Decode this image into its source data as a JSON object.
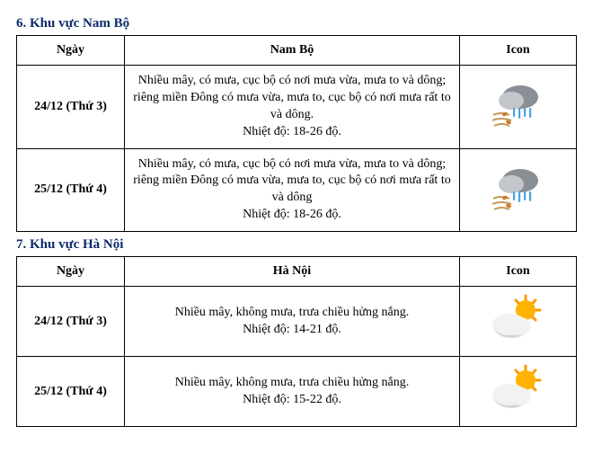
{
  "title_color": "#0b2a6a",
  "border_color": "#000000",
  "text_color": "#000000",
  "background_color": "#ffffff",
  "font_family": "Times New Roman",
  "sections": [
    {
      "title": "6. Khu vực Nam Bộ",
      "region_header": "Nam Bộ",
      "date_header": "Ngày",
      "icon_header": "Icon",
      "icon_type": "storm",
      "rows": [
        {
          "date": "24/12 (Thứ 3)",
          "desc": "Nhiều mây, có mưa, cục bộ có nơi mưa vừa, mưa to và dông; riêng miền Đông có mưa vừa, mưa to, cục bộ có nơi mưa rất to và dông.\nNhiệt độ: 18-26 độ."
        },
        {
          "date": "25/12 (Thứ 4)",
          "desc": "Nhiều mây, có mưa, cục bộ có nơi mưa vừa, mưa to và dông; riêng miền Đông có mưa vừa, mưa to, cục bộ có nơi mưa rất to và dông\nNhiệt độ: 18-26 độ."
        }
      ]
    },
    {
      "title": "7. Khu vực Hà Nội",
      "region_header": "Hà Nội",
      "date_header": "Ngày",
      "icon_header": "Icon",
      "icon_type": "partly_sunny",
      "rows": [
        {
          "date": "24/12 (Thứ 3)",
          "desc": "Nhiều mây, không mưa, trưa chiều hửng nắng.\nNhiệt độ: 14-21 độ."
        },
        {
          "date": "25/12 (Thứ 4)",
          "desc": "Nhiều mây, không mưa, trưa chiều hửng nắng.\nNhiệt độ: 15-22 độ."
        }
      ]
    }
  ],
  "icons": {
    "storm": {
      "cloud_dark": "#8a8f96",
      "cloud_light": "#c3c7cc",
      "rain": "#4aa3e0",
      "wind": "#c29a58",
      "leaf": "#d07a2a"
    },
    "partly_sunny": {
      "sun_core": "#ffb300",
      "sun_edge": "#ff9800",
      "cloud_light": "#f2f2f2",
      "cloud_shadow": "#d7d7d7"
    }
  }
}
